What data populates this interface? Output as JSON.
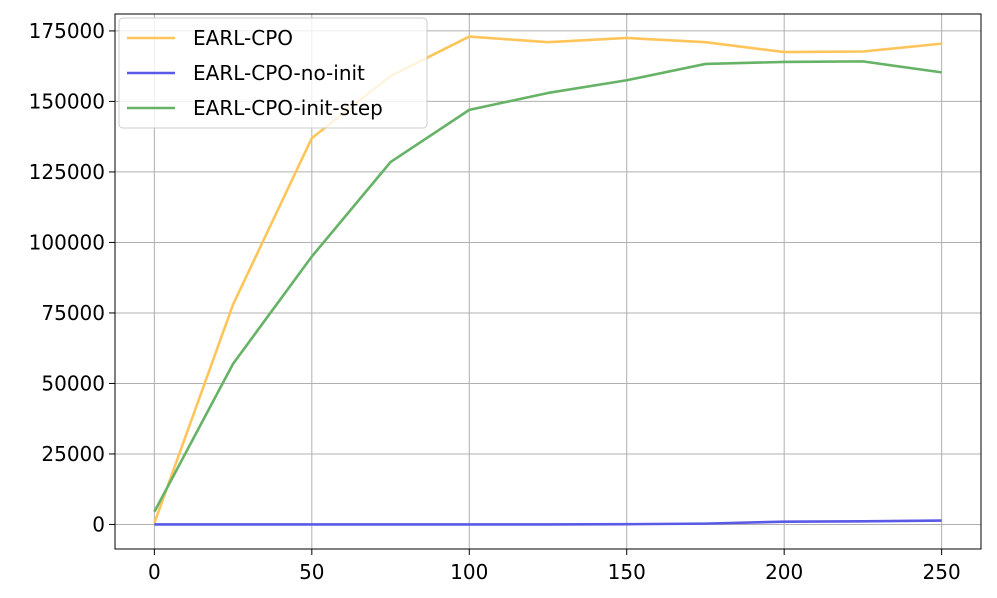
{
  "chart_data": {
    "type": "line",
    "title": "",
    "xlabel": "",
    "ylabel": "",
    "x": [
      0,
      25,
      50,
      75,
      100,
      125,
      150,
      175,
      200,
      225,
      250
    ],
    "xlim": [
      -12.5,
      262.5
    ],
    "ylim": [
      -8700,
      181000
    ],
    "xticks": [
      0,
      50,
      100,
      150,
      200,
      250
    ],
    "yticks": [
      0,
      25000,
      50000,
      75000,
      100000,
      125000,
      150000,
      175000
    ],
    "xtick_labels": [
      "0",
      "50",
      "100",
      "150",
      "200",
      "250"
    ],
    "ytick_labels": [
      "0",
      "25000",
      "50000",
      "75000",
      "100000",
      "125000",
      "150000",
      "175000"
    ],
    "grid": true,
    "legend_position": "top-left",
    "series": [
      {
        "name": "EARL-CPO",
        "color": "#FFC55A",
        "values": [
          500,
          78000,
          137000,
          159000,
          173000,
          171000,
          172500,
          171000,
          167500,
          167700,
          170500
        ]
      },
      {
        "name": "EARL-CPO-no-init",
        "color": "#5A5AE6",
        "values": [
          0,
          0,
          0,
          0,
          0,
          0,
          100,
          300,
          1000,
          1100,
          1400
        ]
      },
      {
        "name": "EARL-CPO-init-step",
        "color": "#66B266",
        "values": [
          4500,
          57000,
          95000,
          128500,
          147000,
          153000,
          157500,
          163300,
          164000,
          164200,
          160300
        ]
      }
    ]
  }
}
